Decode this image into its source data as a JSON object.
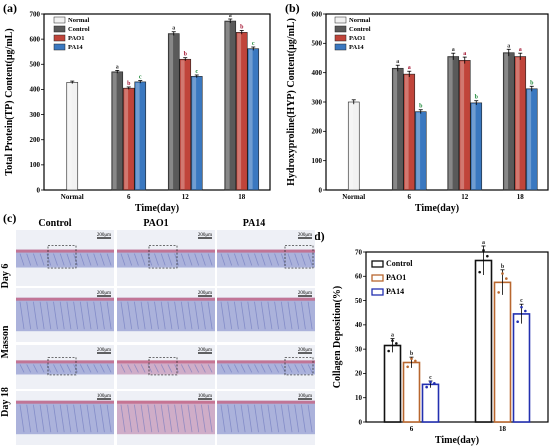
{
  "panels": {
    "a": "(a)",
    "b": "(b)",
    "c": "(c)",
    "d": "(d)"
  },
  "colors": {
    "Normal": "#f2f2f2",
    "Control": "#5a5a5a",
    "PAO1": "#c0443a",
    "PA14": "#3a78c0",
    "d_Control": "#111111",
    "d_PAO1": "#b8672f",
    "d_PA14": "#2330b0"
  },
  "chart_data": [
    {
      "type": "bar",
      "panel": "a",
      "ylabel": "Total Protein(TP) Content(μg/mL)",
      "xlabel": "Time(day)",
      "ylim": [
        0,
        700
      ],
      "yticks": [
        0,
        100,
        200,
        300,
        400,
        500,
        600,
        700
      ],
      "categories": [
        "Normal",
        "6",
        "12",
        "18"
      ],
      "legend": [
        "Normal",
        "Control",
        "PAO1",
        "PA14"
      ],
      "legend_position": "top-left",
      "series": [
        {
          "name": "Normal",
          "values": [
            428,
            null,
            null,
            null
          ],
          "labels": [
            "",
            "",
            "",
            ""
          ]
        },
        {
          "name": "Control",
          "values": [
            null,
            470,
            622,
            672
          ],
          "labels": [
            "",
            "a",
            "a",
            "a"
          ]
        },
        {
          "name": "PAO1",
          "values": [
            null,
            405,
            520,
            627
          ],
          "labels": [
            "",
            "b",
            "b",
            "b"
          ]
        },
        {
          "name": "PA14",
          "values": [
            null,
            430,
            452,
            562
          ],
          "labels": [
            "",
            "c",
            "c",
            "c"
          ]
        }
      ]
    },
    {
      "type": "bar",
      "panel": "b",
      "ylabel": "Hydroxyproline(HYP) Content(μg/mL)",
      "xlabel": "Time(day)",
      "ylim": [
        0,
        600
      ],
      "yticks": [
        0,
        100,
        200,
        300,
        400,
        500,
        600
      ],
      "categories": [
        "Normal",
        "6",
        "12",
        "18"
      ],
      "legend": [
        "Normal",
        "Control",
        "PAO1",
        "PA14"
      ],
      "legend_position": "top-left",
      "series": [
        {
          "name": "Normal",
          "values": [
            300,
            null,
            null,
            null
          ],
          "labels": [
            "",
            "",
            "",
            ""
          ]
        },
        {
          "name": "Control",
          "values": [
            null,
            415,
            455,
            468
          ],
          "labels": [
            "",
            "a",
            "a",
            "a"
          ]
        },
        {
          "name": "PAO1",
          "values": [
            null,
            395,
            442,
            455
          ],
          "labels": [
            "",
            "a",
            "a",
            "a"
          ]
        },
        {
          "name": "PA14",
          "values": [
            null,
            267,
            297,
            345
          ],
          "labels": [
            "",
            "b",
            "b",
            "b"
          ]
        }
      ]
    },
    {
      "type": "bar",
      "panel": "d",
      "ylabel": "Collagen Deposition(%)",
      "xlabel": "Time(day)",
      "ylim": [
        0,
        70
      ],
      "yticks": [
        0,
        10,
        20,
        30,
        40,
        50,
        60,
        70
      ],
      "categories": [
        "6",
        "18"
      ],
      "legend": [
        "Control",
        "PAO1",
        "PA14"
      ],
      "legend_position": "top-left",
      "series": [
        {
          "name": "Control",
          "values": [
            31.5,
            66.5
          ],
          "labels": [
            "a",
            "a"
          ]
        },
        {
          "name": "PAO1",
          "values": [
            24.5,
            57.5
          ],
          "labels": [
            "b",
            "b"
          ]
        },
        {
          "name": "PA14",
          "values": [
            15.5,
            44.5
          ],
          "labels": [
            "c",
            "c"
          ]
        }
      ]
    }
  ],
  "micrographs": {
    "columns": [
      "Control",
      "PAO1",
      "PA14"
    ],
    "rows": [
      "Day 6",
      "Day 18"
    ],
    "stain": "Masson",
    "scale_top": "200μm",
    "scale_bottom": "100μm"
  }
}
